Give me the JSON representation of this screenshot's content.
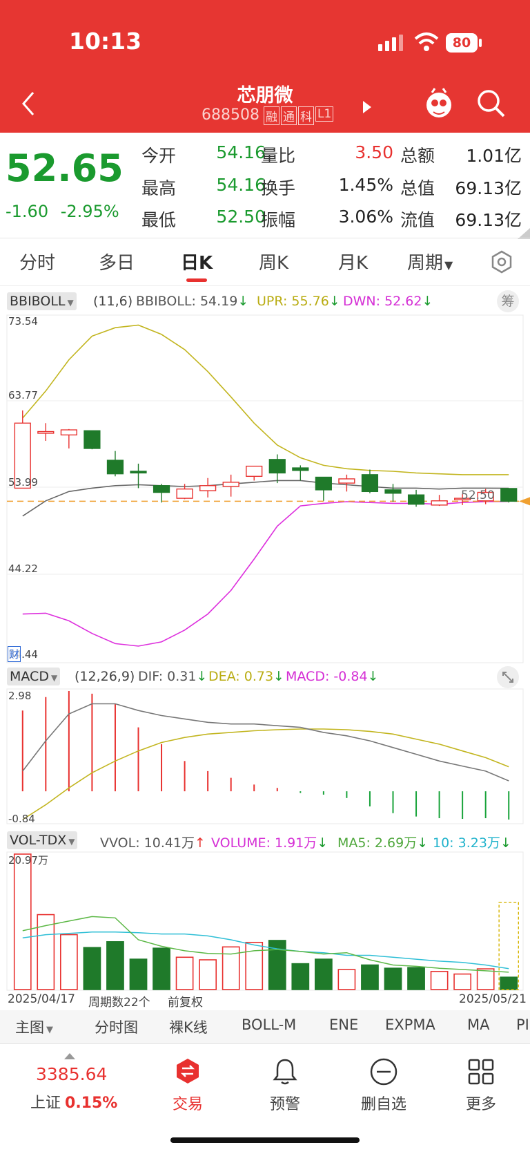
{
  "status_bar": {
    "time": "10:13",
    "battery": "80"
  },
  "header": {
    "name": "芯朋微",
    "code": "688508",
    "badges": [
      "融",
      "通",
      "科",
      "L1"
    ]
  },
  "quote": {
    "price": "52.65",
    "change": "-1.60",
    "change_pct": "-2.95%",
    "cells": [
      {
        "label": "今开",
        "value": "54.16",
        "color": "#1a9a2e"
      },
      {
        "label": "量比",
        "value": "3.50",
        "color": "#e8312f"
      },
      {
        "label": "总额",
        "value": "1.01亿",
        "color": "#222222"
      },
      {
        "label": "最高",
        "value": "54.16",
        "color": "#1a9a2e"
      },
      {
        "label": "换手",
        "value": "1.45%",
        "color": "#222222"
      },
      {
        "label": "总值",
        "value": "69.13亿",
        "color": "#222222"
      },
      {
        "label": "最低",
        "value": "52.50",
        "color": "#1a9a2e"
      },
      {
        "label": "振幅",
        "value": "3.06%",
        "color": "#222222"
      },
      {
        "label": "流值",
        "value": "69.13亿",
        "color": "#222222"
      }
    ]
  },
  "tabs": [
    "分时",
    "多日",
    "日K",
    "周K",
    "月K",
    "周期"
  ],
  "active_tab": "日K",
  "boll": {
    "name": "BBIBOLL",
    "params": "(11,6)",
    "bbiboll": "BBIBOLL: 54.19",
    "upr": "UPR: 55.76",
    "dwn": "DWN: 52.62",
    "chip_label": "筹",
    "ticks": [
      "73.54",
      "63.77",
      "53.99",
      "44.22",
      "34.44"
    ],
    "last_price_label": "52.50",
    "finance_marker": "财"
  },
  "macd": {
    "name": "MACD",
    "params": "(12,26,9)",
    "dif": "DIF: 0.31",
    "dea": "DEA: 0.73",
    "macd": "MACD: -0.84",
    "ticks": [
      "2.98",
      "-0.84"
    ]
  },
  "vol": {
    "name": "VOL-TDX",
    "vvol": "VVOL: 10.41万",
    "volume": "VOLUME: 1.91万",
    "ma5": "MA5: 2.69万",
    "ma10": "10: 3.23万",
    "top_tick": "20.97万",
    "date_start": "2025/04/17",
    "period_count": "周期数22个",
    "adjust": "前复权",
    "date_end": "2025/05/21"
  },
  "colors": {
    "up": "#e8312f",
    "down": "#1f7a2a",
    "upper": "#c2b51f",
    "lower": "#dd2fdd",
    "mid": "#666666",
    "dea": "#c2b51f",
    "ma10": "#2fbfd6",
    "ma5": "#5cb846"
  },
  "chart_data": {
    "type": "candlestick",
    "candles": [
      {
        "o": 54.2,
        "c": 61.9,
        "h": 63.4,
        "l": 54.2
      },
      {
        "o": 60.7,
        "c": 60.9,
        "h": 61.9,
        "l": 59.8
      },
      {
        "o": 60.5,
        "c": 61.1,
        "h": 61.2,
        "l": 58.9
      },
      {
        "o": 61.0,
        "c": 58.9,
        "h": 61.0,
        "l": 58.8
      },
      {
        "o": 57.5,
        "c": 55.9,
        "h": 58.6,
        "l": 55.6
      },
      {
        "o": 56.2,
        "c": 56.0,
        "h": 57.1,
        "l": 54.2
      },
      {
        "o": 54.5,
        "c": 53.7,
        "h": 54.7,
        "l": 52.5
      },
      {
        "o": 53.0,
        "c": 54.1,
        "h": 54.7,
        "l": 52.9
      },
      {
        "o": 53.9,
        "c": 54.5,
        "h": 55.4,
        "l": 53.1
      },
      {
        "o": 54.4,
        "c": 54.9,
        "h": 55.8,
        "l": 53.2
      },
      {
        "o": 55.6,
        "c": 56.8,
        "h": 56.8,
        "l": 55.1
      },
      {
        "o": 57.6,
        "c": 56.0,
        "h": 58.2,
        "l": 54.8
      },
      {
        "o": 56.6,
        "c": 56.3,
        "h": 56.9,
        "l": 55.1
      },
      {
        "o": 55.5,
        "c": 54.0,
        "h": 55.5,
        "l": 52.7
      },
      {
        "o": 54.8,
        "c": 55.3,
        "h": 55.8,
        "l": 53.8
      },
      {
        "o": 55.8,
        "c": 53.8,
        "h": 56.4,
        "l": 53.6
      },
      {
        "o": 54.0,
        "c": 53.6,
        "h": 54.7,
        "l": 52.6
      },
      {
        "o": 53.4,
        "c": 52.3,
        "h": 54.0,
        "l": 52.0
      },
      {
        "o": 52.2,
        "c": 52.7,
        "h": 53.4,
        "l": 52.1
      },
      {
        "o": 53.0,
        "c": 53.0,
        "h": 53.5,
        "l": 52.2
      },
      {
        "o": 52.7,
        "c": 53.7,
        "h": 54.1,
        "l": 52.3
      },
      {
        "o": 54.16,
        "c": 52.65,
        "h": 54.16,
        "l": 52.5
      }
    ],
    "upper": [
      62.5,
      65.7,
      69.4,
      72.2,
      73.2,
      73.5,
      72.4,
      70.6,
      68.0,
      65.0,
      61.9,
      59.3,
      57.8,
      56.9,
      56.5,
      56.3,
      56.2,
      56.0,
      55.9,
      55.8,
      55.8,
      55.8
    ],
    "mid": [
      50.9,
      52.7,
      53.8,
      54.2,
      54.5,
      54.6,
      54.5,
      54.4,
      54.5,
      54.7,
      54.9,
      55.1,
      55.1,
      54.8,
      54.6,
      54.4,
      54.2,
      54.2,
      54.1,
      54.2,
      54.2,
      54.19
    ],
    "lower": [
      39.3,
      39.4,
      38.5,
      37.0,
      35.8,
      35.5,
      36.0,
      37.4,
      39.3,
      42.1,
      45.8,
      49.7,
      52.1,
      52.4,
      52.6,
      52.5,
      52.4,
      52.4,
      52.3,
      52.5,
      52.6,
      52.62
    ],
    "macd": {
      "dif": [
        0.6,
        1.5,
        2.3,
        2.6,
        2.6,
        2.4,
        2.25,
        2.15,
        2.05,
        2.0,
        2.0,
        1.95,
        1.9,
        1.75,
        1.65,
        1.5,
        1.3,
        1.1,
        0.9,
        0.75,
        0.6,
        0.31
      ],
      "dea": [
        -0.84,
        -0.4,
        0.1,
        0.55,
        0.9,
        1.2,
        1.45,
        1.6,
        1.7,
        1.75,
        1.8,
        1.83,
        1.85,
        1.85,
        1.83,
        1.78,
        1.7,
        1.55,
        1.4,
        1.2,
        1.0,
        0.73
      ],
      "hist": [
        2.4,
        2.8,
        2.98,
        2.9,
        2.6,
        1.9,
        1.4,
        0.9,
        0.6,
        0.4,
        0.2,
        0.1,
        -0.05,
        -0.1,
        -0.2,
        -0.45,
        -0.65,
        -0.75,
        -0.8,
        -0.82,
        -0.8,
        -0.84
      ]
    },
    "volume": {
      "values": [
        20.97,
        11.6,
        8.5,
        6.5,
        7.4,
        4.7,
        6.4,
        5.0,
        4.6,
        6.6,
        7.3,
        7.6,
        4.0,
        4.7,
        3.1,
        3.8,
        3.3,
        3.4,
        2.8,
        2.4,
        3.2,
        1.91
      ],
      "ma5": [
        9.1,
        9.9,
        10.6,
        11.3,
        11.1,
        7.7,
        6.7,
        6.0,
        5.6,
        5.5,
        6.0,
        6.2,
        5.9,
        5.5,
        5.7,
        4.6,
        3.8,
        3.6,
        3.3,
        3.1,
        2.9,
        2.69
      ],
      "ma10": [
        8.0,
        8.5,
        8.7,
        8.9,
        8.9,
        8.8,
        8.6,
        8.6,
        8.3,
        7.7,
        6.9,
        6.3,
        5.9,
        5.7,
        5.3,
        5.3,
        5.0,
        4.7,
        4.4,
        4.2,
        3.8,
        3.23
      ],
      "vvol_max": 13.5
    }
  },
  "indicator_tabs": [
    "主图",
    "分时图",
    "裸K线",
    "BOLL-M",
    "ENE",
    "EXPMA",
    "MA",
    "PI"
  ],
  "bottom_nav": {
    "index_value": "3385.64",
    "index_name": "上证",
    "index_change": "0.15%",
    "items": [
      "交易",
      "预警",
      "删自选",
      "更多"
    ]
  }
}
